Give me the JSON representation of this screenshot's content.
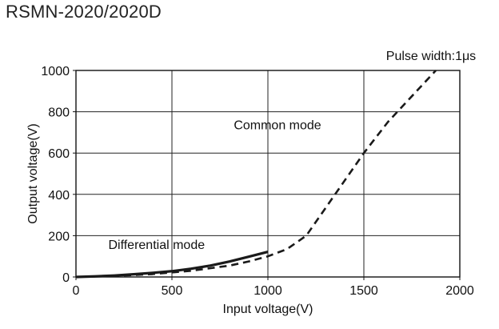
{
  "chart_data": {
    "type": "line",
    "title": "RSMN-2020/2020D",
    "xlabel": "Input voltage(V)",
    "ylabel": "Output voltage(V)",
    "xlim": [
      0,
      2000
    ],
    "ylim": [
      0,
      1000
    ],
    "x_ticks": [
      0,
      500,
      1000,
      1500,
      2000
    ],
    "y_ticks": [
      0,
      200,
      400,
      600,
      800,
      1000
    ],
    "grid": true,
    "legend": "none",
    "series": [
      {
        "name": "Differential mode",
        "line_style": "solid",
        "color": "#1a1a1a",
        "x": [
          0,
          100,
          200,
          300,
          400,
          500,
          600,
          700,
          800,
          900,
          1000
        ],
        "y": [
          0,
          3,
          7,
          13,
          20,
          28,
          40,
          55,
          75,
          98,
          122
        ]
      },
      {
        "name": "Common mode",
        "line_style": "dashed",
        "color": "#1a1a1a",
        "x": [
          0,
          200,
          400,
          600,
          800,
          900,
          1000,
          1100,
          1200,
          1500,
          1625,
          1875
        ],
        "y": [
          0,
          5,
          14,
          30,
          55,
          75,
          100,
          135,
          200,
          600,
          750,
          1000
        ]
      }
    ],
    "annotations": [
      {
        "text": "Pulse width:1μs",
        "x": 1850,
        "y": 1050
      },
      {
        "text": "Common mode",
        "x": 1050,
        "y": 715
      },
      {
        "text": "Differential mode",
        "x": 420,
        "y": 135
      }
    ]
  }
}
